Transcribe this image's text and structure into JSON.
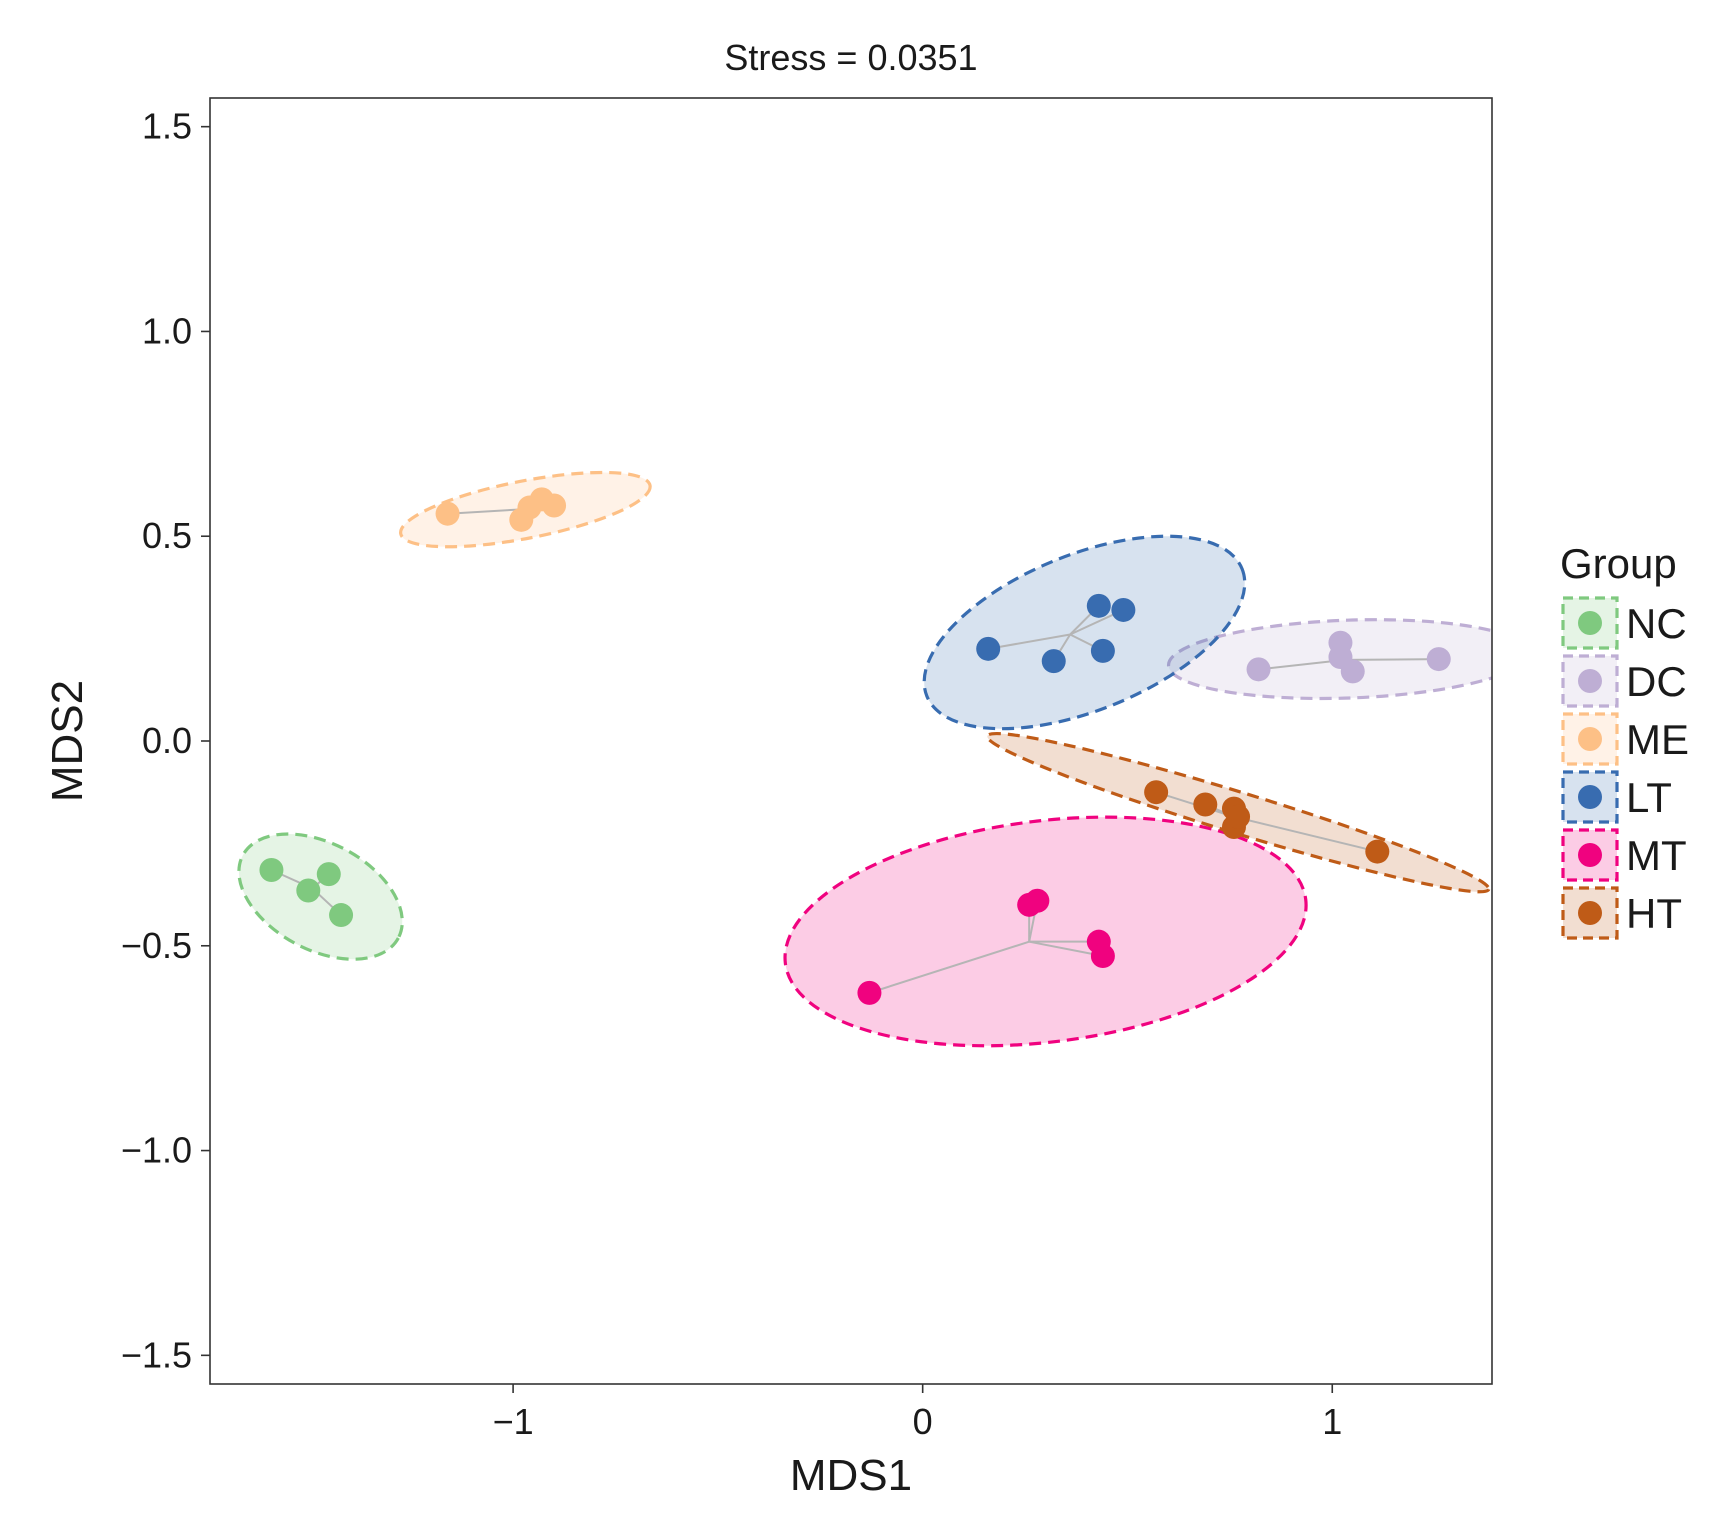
{
  "chart_data": {
    "type": "scatter",
    "title": "Stress = 0.0351",
    "xlabel": "MDS1",
    "ylabel": "MDS2",
    "xlim": [
      -1.74,
      1.39
    ],
    "ylim": [
      -1.57,
      1.57
    ],
    "x_ticks": [
      -1,
      0,
      1
    ],
    "x_tick_labels": [
      "−1",
      "0",
      "1"
    ],
    "y_ticks": [
      -1.5,
      -1.0,
      -0.5,
      0.0,
      0.5,
      1.0,
      1.5
    ],
    "y_tick_labels": [
      "−1.5",
      "−1.0",
      "−0.5",
      "0.0",
      "0.5",
      "1.0",
      "1.5"
    ],
    "grid": false,
    "legend": {
      "title": "Group",
      "position": "right"
    },
    "series": [
      {
        "name": "NC",
        "color": "#7fc97f",
        "points": [
          [
            -1.59,
            -0.315
          ],
          [
            -1.5,
            -0.365
          ],
          [
            -1.45,
            -0.325
          ],
          [
            -1.42,
            -0.425
          ]
        ],
        "centroid": [
          -1.49,
          -0.36
        ],
        "ellipse": {
          "cx": -1.47,
          "cy": -0.38,
          "rx": 0.215,
          "ry": 0.13,
          "angle_deg": -28
        }
      },
      {
        "name": "DC",
        "color": "#beaed4",
        "points": [
          [
            0.82,
            0.175
          ],
          [
            1.02,
            0.24
          ],
          [
            1.02,
            0.205
          ],
          [
            1.05,
            0.17
          ],
          [
            1.26,
            0.2
          ]
        ],
        "centroid": [
          1.03,
          0.198
        ],
        "ellipse": {
          "cx": 1.04,
          "cy": 0.2,
          "rx": 0.44,
          "ry": 0.095,
          "angle_deg": 2
        }
      },
      {
        "name": "ME",
        "color": "#fdc086",
        "points": [
          [
            -1.16,
            0.555
          ],
          [
            -0.98,
            0.54
          ],
          [
            -0.96,
            0.57
          ],
          [
            -0.93,
            0.59
          ],
          [
            -0.9,
            0.575
          ]
        ],
        "centroid": [
          -0.99,
          0.565
        ],
        "ellipse": {
          "cx": -0.97,
          "cy": 0.565,
          "rx": 0.31,
          "ry": 0.07,
          "angle_deg": 11
        }
      },
      {
        "name": "LT",
        "color": "#386cb0",
        "points": [
          [
            0.16,
            0.225
          ],
          [
            0.32,
            0.195
          ],
          [
            0.43,
            0.33
          ],
          [
            0.44,
            0.22
          ],
          [
            0.49,
            0.32
          ]
        ],
        "centroid": [
          0.36,
          0.26
        ],
        "ellipse": {
          "cx": 0.395,
          "cy": 0.265,
          "rx": 0.415,
          "ry": 0.19,
          "angle_deg": 22
        }
      },
      {
        "name": "MT",
        "color": "#f0027f",
        "points": [
          [
            -0.13,
            -0.615
          ],
          [
            0.26,
            -0.4
          ],
          [
            0.28,
            -0.39
          ],
          [
            0.43,
            -0.49
          ],
          [
            0.44,
            -0.525
          ]
        ],
        "centroid": [
          0.26,
          -0.49
        ],
        "ellipse": {
          "cx": 0.3,
          "cy": -0.465,
          "rx": 0.64,
          "ry": 0.27,
          "angle_deg": 7
        }
      },
      {
        "name": "HT",
        "color": "#bf5b17",
        "points": [
          [
            0.57,
            -0.125
          ],
          [
            0.69,
            -0.155
          ],
          [
            0.76,
            -0.165
          ],
          [
            0.76,
            -0.21
          ],
          [
            0.77,
            -0.185
          ],
          [
            1.11,
            -0.27
          ]
        ],
        "centroid": [
          0.76,
          -0.185
        ],
        "ellipse": {
          "cx": 0.77,
          "cy": -0.175,
          "rx": 0.64,
          "ry": 0.05,
          "angle_deg": -17
        }
      }
    ]
  }
}
